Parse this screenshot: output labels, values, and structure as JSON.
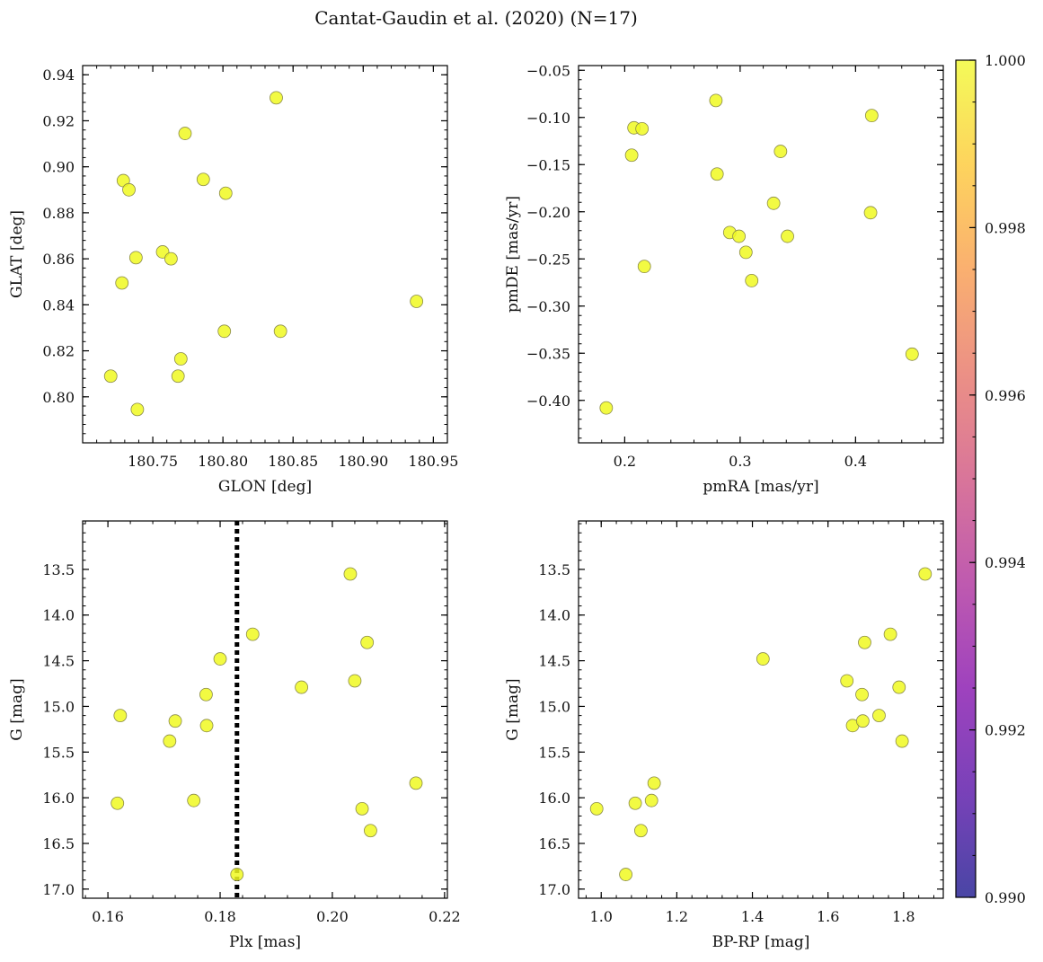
{
  "title": "Cantat-Gaudin et al. (2020) (N=17)",
  "colors": {
    "point_fill": "#f0f921",
    "point_edge": "#8a8a4a",
    "vline": "#000000"
  },
  "colorbar": {
    "range": [
      0.99,
      1.0
    ],
    "tick_labels": [
      "0.990",
      "0.992",
      "0.994",
      "0.996",
      "0.998",
      "1.000"
    ],
    "tick_values": [
      0.99,
      0.992,
      0.994,
      0.996,
      0.998,
      1.0
    ],
    "colormap": "plasma"
  },
  "chart_data": [
    {
      "type": "scatter",
      "xlabel": "GLON [deg]",
      "ylabel": "GLAT [deg]",
      "xlim": [
        180.7,
        180.96
      ],
      "ylim": [
        0.78,
        0.944
      ],
      "xticks": [
        180.75,
        180.8,
        180.85,
        180.9,
        180.95
      ],
      "xtick_labels": [
        "180.75",
        "180.80",
        "180.85",
        "180.90",
        "180.95"
      ],
      "yticks": [
        0.8,
        0.82,
        0.84,
        0.86,
        0.88,
        0.9,
        0.92,
        0.94
      ],
      "ytick_labels": [
        "0.80",
        "0.82",
        "0.84",
        "0.86",
        "0.88",
        "0.90",
        "0.92",
        "0.94"
      ],
      "y_inverted": false,
      "x": [
        180.72,
        180.728,
        180.729,
        180.733,
        180.738,
        180.739,
        180.757,
        180.763,
        180.768,
        180.77,
        180.773,
        180.786,
        180.801,
        180.802,
        180.838,
        180.841,
        180.938
      ],
      "y": [
        0.809,
        0.8495,
        0.894,
        0.89,
        0.8605,
        0.7945,
        0.863,
        0.86,
        0.809,
        0.8165,
        0.9145,
        0.8945,
        0.8285,
        0.8885,
        0.93,
        0.8285,
        0.8415
      ]
    },
    {
      "type": "scatter",
      "xlabel": "pmRA [mas/yr]",
      "ylabel": "pmDE [mas/yr]",
      "xlim": [
        0.16,
        0.476
      ],
      "ylim": [
        -0.445,
        -0.045
      ],
      "xticks": [
        0.2,
        0.3,
        0.4
      ],
      "xtick_labels": [
        "0.2",
        "0.3",
        "0.4"
      ],
      "yticks": [
        -0.4,
        -0.35,
        -0.3,
        -0.25,
        -0.2,
        -0.15,
        -0.1,
        -0.05
      ],
      "ytick_labels": [
        "−0.40",
        "−0.35",
        "−0.30",
        "−0.25",
        "−0.20",
        "−0.15",
        "−0.10",
        "−0.05"
      ],
      "y_inverted": false,
      "x": [
        0.184,
        0.206,
        0.208,
        0.215,
        0.217,
        0.279,
        0.28,
        0.291,
        0.299,
        0.305,
        0.31,
        0.329,
        0.335,
        0.341,
        0.413,
        0.414,
        0.449
      ],
      "y": [
        -0.408,
        -0.14,
        -0.111,
        -0.112,
        -0.258,
        -0.082,
        -0.16,
        -0.222,
        -0.226,
        -0.243,
        -0.273,
        -0.191,
        -0.136,
        -0.226,
        -0.201,
        -0.098,
        -0.351
      ]
    },
    {
      "type": "scatter",
      "xlabel": "Plx [mas]",
      "ylabel": "G [mag]",
      "xlim": [
        0.1555,
        0.2205
      ],
      "ylim": [
        17.1,
        12.97
      ],
      "xticks": [
        0.16,
        0.18,
        0.2,
        0.22
      ],
      "xtick_labels": [
        "0.16",
        "0.18",
        "0.20",
        "0.22"
      ],
      "yticks": [
        13.5,
        14.0,
        14.5,
        15.0,
        15.5,
        16.0,
        16.5,
        17.0
      ],
      "ytick_labels": [
        "13.5",
        "14.0",
        "14.5",
        "15.0",
        "15.5",
        "16.0",
        "16.5",
        "17.0"
      ],
      "y_inverted": true,
      "vline_x": 0.183,
      "x": [
        0.1617,
        0.1622,
        0.171,
        0.172,
        0.1753,
        0.1775,
        0.1776,
        0.18,
        0.183,
        0.1858,
        0.1945,
        0.2032,
        0.204,
        0.2053,
        0.2062,
        0.2068,
        0.2149
      ],
      "y": [
        16.06,
        15.1,
        15.38,
        15.16,
        16.03,
        14.87,
        15.21,
        14.48,
        16.84,
        14.21,
        14.79,
        13.55,
        14.72,
        16.12,
        14.3,
        16.36,
        15.84
      ]
    },
    {
      "type": "scatter",
      "xlabel": "BP-RP [mag]",
      "ylabel": "G [mag]",
      "xlim": [
        0.94,
        1.905
      ],
      "ylim": [
        17.1,
        12.97
      ],
      "xticks": [
        1.0,
        1.2,
        1.4,
        1.6,
        1.8
      ],
      "xtick_labels": [
        "1.0",
        "1.2",
        "1.4",
        "1.6",
        "1.8"
      ],
      "yticks": [
        13.5,
        14.0,
        14.5,
        15.0,
        15.5,
        16.0,
        16.5,
        17.0
      ],
      "ytick_labels": [
        "13.5",
        "14.0",
        "14.5",
        "15.0",
        "15.5",
        "16.0",
        "16.5",
        "17.0"
      ],
      "y_inverted": true,
      "x": [
        0.988,
        1.065,
        1.09,
        1.105,
        1.133,
        1.14,
        1.428,
        1.65,
        1.665,
        1.69,
        1.692,
        1.697,
        1.735,
        1.765,
        1.788,
        1.796,
        1.857
      ],
      "y": [
        16.12,
        16.84,
        16.06,
        16.36,
        16.03,
        15.84,
        14.48,
        14.72,
        15.21,
        14.87,
        15.16,
        14.3,
        15.1,
        14.21,
        14.79,
        15.38,
        13.55
      ]
    }
  ]
}
